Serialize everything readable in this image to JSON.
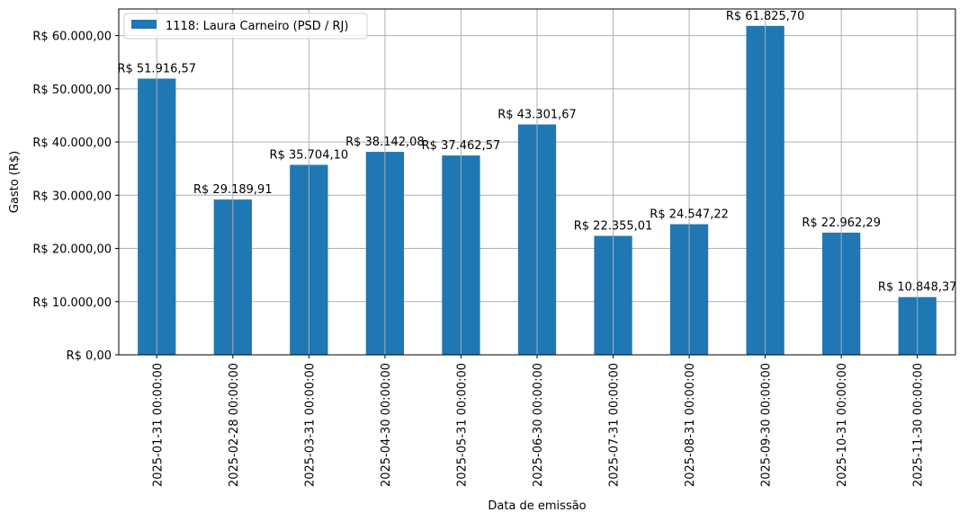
{
  "chart_data": {
    "type": "bar",
    "xlabel": "Data de emissão",
    "ylabel": "Gasto (R$)",
    "categories": [
      "2025-01-31 00:00:00",
      "2025-02-28 00:00:00",
      "2025-03-31 00:00:00",
      "2025-04-30 00:00:00",
      "2025-05-31 00:00:00",
      "2025-06-30 00:00:00",
      "2025-07-31 00:00:00",
      "2025-08-31 00:00:00",
      "2025-09-30 00:00:00",
      "2025-10-31 00:00:00",
      "2025-11-30 00:00:00"
    ],
    "series": [
      {
        "name": "1118: Laura Carneiro (PSD / RJ)",
        "color": "#1f77b4",
        "values": [
          51916.57,
          29189.91,
          35704.1,
          38142.08,
          37462.57,
          43301.67,
          22355.01,
          24547.22,
          61825.7,
          22962.29,
          10848.37
        ],
        "labels": [
          "R$ 51.916,57",
          "R$ 29.189,91",
          "R$ 35.704,10",
          "R$ 38.142,08",
          "R$ 37.462,57",
          "R$ 43.301,67",
          "R$ 22.355,01",
          "R$ 24.547,22",
          "R$ 61.825,70",
          "R$ 22.962,29",
          "R$ 10.848,37"
        ]
      }
    ],
    "ylim": [
      0,
      65000
    ],
    "yticks": [
      0,
      10000,
      20000,
      30000,
      40000,
      50000,
      60000
    ],
    "ytick_labels": [
      "R$ 0,00",
      "R$ 10.000,00",
      "R$ 20.000,00",
      "R$ 30.000,00",
      "R$ 40.000,00",
      "R$ 50.000,00",
      "R$ 60.000,00"
    ],
    "grid": true,
    "legend_position": "top-left"
  }
}
